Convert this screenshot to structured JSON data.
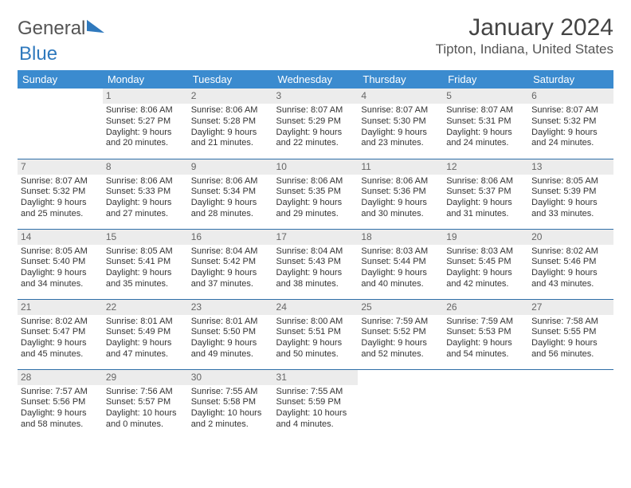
{
  "logo": {
    "part1": "General",
    "part2": "Blue"
  },
  "title": "January 2024",
  "location": "Tipton, Indiana, United States",
  "colors": {
    "header_bg": "#3b8bcf",
    "header_text": "#ffffff",
    "daynum_bg": "#ececec",
    "daynum_text": "#666666",
    "row_border": "#2f6fa8",
    "text": "#333333",
    "accent": "#2f79bd"
  },
  "day_headers": [
    "Sunday",
    "Monday",
    "Tuesday",
    "Wednesday",
    "Thursday",
    "Friday",
    "Saturday"
  ],
  "cells": [
    {
      "n": "",
      "sr": "",
      "ss": "",
      "dl": ""
    },
    {
      "n": "1",
      "sr": "Sunrise: 8:06 AM",
      "ss": "Sunset: 5:27 PM",
      "dl": "Daylight: 9 hours and 20 minutes."
    },
    {
      "n": "2",
      "sr": "Sunrise: 8:06 AM",
      "ss": "Sunset: 5:28 PM",
      "dl": "Daylight: 9 hours and 21 minutes."
    },
    {
      "n": "3",
      "sr": "Sunrise: 8:07 AM",
      "ss": "Sunset: 5:29 PM",
      "dl": "Daylight: 9 hours and 22 minutes."
    },
    {
      "n": "4",
      "sr": "Sunrise: 8:07 AM",
      "ss": "Sunset: 5:30 PM",
      "dl": "Daylight: 9 hours and 23 minutes."
    },
    {
      "n": "5",
      "sr": "Sunrise: 8:07 AM",
      "ss": "Sunset: 5:31 PM",
      "dl": "Daylight: 9 hours and 24 minutes."
    },
    {
      "n": "6",
      "sr": "Sunrise: 8:07 AM",
      "ss": "Sunset: 5:32 PM",
      "dl": "Daylight: 9 hours and 24 minutes."
    },
    {
      "n": "7",
      "sr": "Sunrise: 8:07 AM",
      "ss": "Sunset: 5:32 PM",
      "dl": "Daylight: 9 hours and 25 minutes."
    },
    {
      "n": "8",
      "sr": "Sunrise: 8:06 AM",
      "ss": "Sunset: 5:33 PM",
      "dl": "Daylight: 9 hours and 27 minutes."
    },
    {
      "n": "9",
      "sr": "Sunrise: 8:06 AM",
      "ss": "Sunset: 5:34 PM",
      "dl": "Daylight: 9 hours and 28 minutes."
    },
    {
      "n": "10",
      "sr": "Sunrise: 8:06 AM",
      "ss": "Sunset: 5:35 PM",
      "dl": "Daylight: 9 hours and 29 minutes."
    },
    {
      "n": "11",
      "sr": "Sunrise: 8:06 AM",
      "ss": "Sunset: 5:36 PM",
      "dl": "Daylight: 9 hours and 30 minutes."
    },
    {
      "n": "12",
      "sr": "Sunrise: 8:06 AM",
      "ss": "Sunset: 5:37 PM",
      "dl": "Daylight: 9 hours and 31 minutes."
    },
    {
      "n": "13",
      "sr": "Sunrise: 8:05 AM",
      "ss": "Sunset: 5:39 PM",
      "dl": "Daylight: 9 hours and 33 minutes."
    },
    {
      "n": "14",
      "sr": "Sunrise: 8:05 AM",
      "ss": "Sunset: 5:40 PM",
      "dl": "Daylight: 9 hours and 34 minutes."
    },
    {
      "n": "15",
      "sr": "Sunrise: 8:05 AM",
      "ss": "Sunset: 5:41 PM",
      "dl": "Daylight: 9 hours and 35 minutes."
    },
    {
      "n": "16",
      "sr": "Sunrise: 8:04 AM",
      "ss": "Sunset: 5:42 PM",
      "dl": "Daylight: 9 hours and 37 minutes."
    },
    {
      "n": "17",
      "sr": "Sunrise: 8:04 AM",
      "ss": "Sunset: 5:43 PM",
      "dl": "Daylight: 9 hours and 38 minutes."
    },
    {
      "n": "18",
      "sr": "Sunrise: 8:03 AM",
      "ss": "Sunset: 5:44 PM",
      "dl": "Daylight: 9 hours and 40 minutes."
    },
    {
      "n": "19",
      "sr": "Sunrise: 8:03 AM",
      "ss": "Sunset: 5:45 PM",
      "dl": "Daylight: 9 hours and 42 minutes."
    },
    {
      "n": "20",
      "sr": "Sunrise: 8:02 AM",
      "ss": "Sunset: 5:46 PM",
      "dl": "Daylight: 9 hours and 43 minutes."
    },
    {
      "n": "21",
      "sr": "Sunrise: 8:02 AM",
      "ss": "Sunset: 5:47 PM",
      "dl": "Daylight: 9 hours and 45 minutes."
    },
    {
      "n": "22",
      "sr": "Sunrise: 8:01 AM",
      "ss": "Sunset: 5:49 PM",
      "dl": "Daylight: 9 hours and 47 minutes."
    },
    {
      "n": "23",
      "sr": "Sunrise: 8:01 AM",
      "ss": "Sunset: 5:50 PM",
      "dl": "Daylight: 9 hours and 49 minutes."
    },
    {
      "n": "24",
      "sr": "Sunrise: 8:00 AM",
      "ss": "Sunset: 5:51 PM",
      "dl": "Daylight: 9 hours and 50 minutes."
    },
    {
      "n": "25",
      "sr": "Sunrise: 7:59 AM",
      "ss": "Sunset: 5:52 PM",
      "dl": "Daylight: 9 hours and 52 minutes."
    },
    {
      "n": "26",
      "sr": "Sunrise: 7:59 AM",
      "ss": "Sunset: 5:53 PM",
      "dl": "Daylight: 9 hours and 54 minutes."
    },
    {
      "n": "27",
      "sr": "Sunrise: 7:58 AM",
      "ss": "Sunset: 5:55 PM",
      "dl": "Daylight: 9 hours and 56 minutes."
    },
    {
      "n": "28",
      "sr": "Sunrise: 7:57 AM",
      "ss": "Sunset: 5:56 PM",
      "dl": "Daylight: 9 hours and 58 minutes."
    },
    {
      "n": "29",
      "sr": "Sunrise: 7:56 AM",
      "ss": "Sunset: 5:57 PM",
      "dl": "Daylight: 10 hours and 0 minutes."
    },
    {
      "n": "30",
      "sr": "Sunrise: 7:55 AM",
      "ss": "Sunset: 5:58 PM",
      "dl": "Daylight: 10 hours and 2 minutes."
    },
    {
      "n": "31",
      "sr": "Sunrise: 7:55 AM",
      "ss": "Sunset: 5:59 PM",
      "dl": "Daylight: 10 hours and 4 minutes."
    },
    {
      "n": "",
      "sr": "",
      "ss": "",
      "dl": ""
    },
    {
      "n": "",
      "sr": "",
      "ss": "",
      "dl": ""
    },
    {
      "n": "",
      "sr": "",
      "ss": "",
      "dl": ""
    }
  ]
}
